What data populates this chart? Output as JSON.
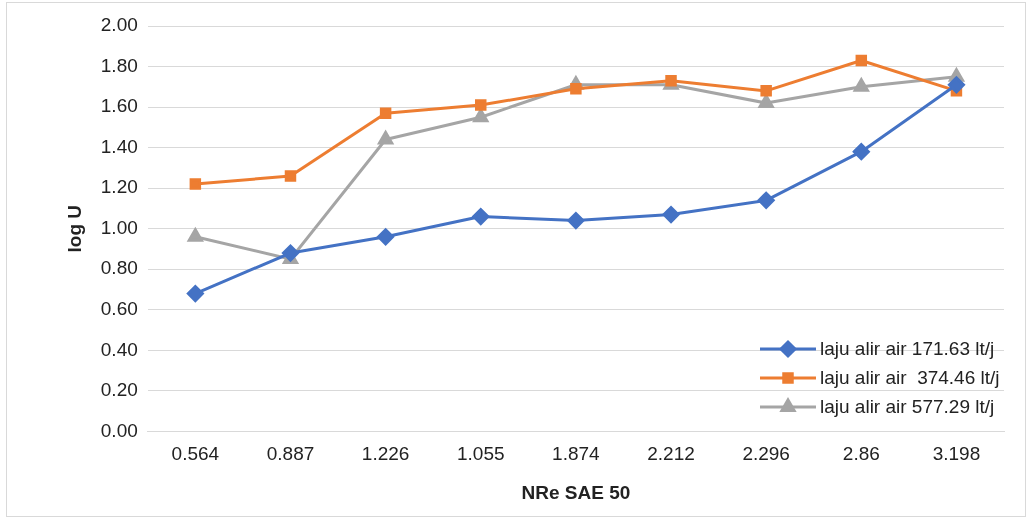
{
  "chart_data": {
    "type": "line",
    "xlabel": "NRe SAE 50",
    "ylabel": "log U",
    "categories": [
      "0.564",
      "0.887",
      "1.226",
      "1.055",
      "1.874",
      "2.212",
      "2.296",
      "2.86",
      "3.198"
    ],
    "series": [
      {
        "name": "laju alir air 171.63 lt/j",
        "color": "#4472c4",
        "marker": "diamond",
        "values": [
          0.68,
          0.88,
          0.96,
          1.06,
          1.04,
          1.07,
          1.14,
          1.38,
          1.71
        ]
      },
      {
        "name": "laju alir air  374.46 lt/j",
        "color": "#ed7d31",
        "marker": "square",
        "values": [
          1.22,
          1.26,
          1.57,
          1.61,
          1.69,
          1.73,
          1.68,
          1.83,
          1.68
        ]
      },
      {
        "name": "laju alir air 577.29 lt/j",
        "color": "#a5a5a5",
        "marker": "triangle",
        "values": [
          0.96,
          0.85,
          1.44,
          1.55,
          1.71,
          1.71,
          1.62,
          1.7,
          1.75
        ]
      }
    ],
    "ylim": [
      0,
      2
    ],
    "yticks": [
      {
        "value": 0,
        "label": "0.00"
      },
      {
        "value": 0.2,
        "label": "0.20"
      },
      {
        "value": 0.4,
        "label": "0.40"
      },
      {
        "value": 0.6,
        "label": "0.60"
      },
      {
        "value": 0.8,
        "label": "0.80"
      },
      {
        "value": 1,
        "label": "1.00"
      },
      {
        "value": 1.2,
        "label": "1.20"
      },
      {
        "value": 1.4,
        "label": "1.40"
      },
      {
        "value": 1.6,
        "label": "1.60"
      },
      {
        "value": 1.8,
        "label": "1.80"
      },
      {
        "value": 2,
        "label": "2.00"
      }
    ],
    "grid": "y",
    "legend": "bottom right"
  }
}
